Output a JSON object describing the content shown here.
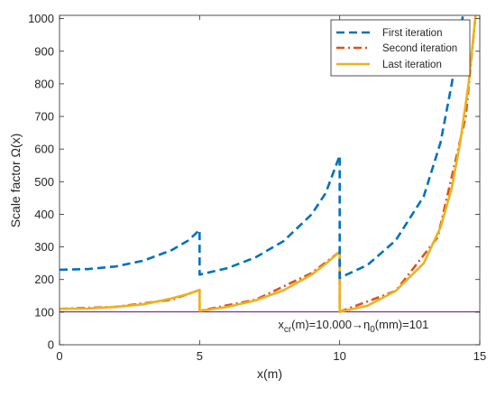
{
  "chart_data": {
    "type": "line",
    "xlabel": "x(m)",
    "ylabel": "Scale factor Ω(x)",
    "xlim": [
      0,
      15
    ],
    "ylim": [
      0,
      1010
    ],
    "xticks": [
      0,
      5,
      10,
      15
    ],
    "yticks": [
      0,
      100,
      200,
      300,
      400,
      500,
      600,
      700,
      800,
      900,
      1000
    ],
    "grid": false,
    "legend_position": "top-right",
    "annotation": {
      "text": "x_cr(m)=10.000→η_0(mm)=101",
      "parts": {
        "a": "x",
        "a_sub": "cr",
        "b": "(m)=10.000→",
        "c": "η",
        "c_sub": "0",
        "d": "(mm)=101"
      },
      "x": 7.8,
      "y": 50
    },
    "reference_line": {
      "y": 101,
      "color": "#7e2f8e"
    },
    "series": [
      {
        "name": "First iteration",
        "color": "#0072bd",
        "style": "dashed",
        "points": [
          [
            0,
            230
          ],
          [
            1,
            232
          ],
          [
            2,
            240
          ],
          [
            3,
            258
          ],
          [
            4,
            290
          ],
          [
            4.6,
            320
          ],
          [
            5,
            352
          ],
          [
            5.0,
            215
          ],
          [
            6,
            235
          ],
          [
            7,
            268
          ],
          [
            8,
            318
          ],
          [
            9,
            400
          ],
          [
            9.5,
            465
          ],
          [
            10,
            580
          ],
          [
            10.0,
            205
          ],
          [
            11,
            245
          ],
          [
            12,
            320
          ],
          [
            13,
            455
          ],
          [
            13.6,
            620
          ],
          [
            14,
            800
          ],
          [
            14.4,
            1010
          ]
        ]
      },
      {
        "name": "Second iteration",
        "color": "#d95319",
        "style": "dashdot",
        "points": [
          [
            0,
            110
          ],
          [
            2,
            116
          ],
          [
            4,
            138
          ],
          [
            5,
            168
          ],
          [
            5.0,
            104
          ],
          [
            7,
            138
          ],
          [
            9,
            220
          ],
          [
            10,
            285
          ],
          [
            10.0,
            101
          ],
          [
            12,
            165
          ],
          [
            13.5,
            330
          ],
          [
            14.5,
            700
          ],
          [
            14.85,
            1010
          ]
        ]
      },
      {
        "name": "Last iteration",
        "color": "#edb120",
        "style": "solid",
        "points": [
          [
            0,
            110
          ],
          [
            1,
            111
          ],
          [
            2,
            116
          ],
          [
            3,
            124
          ],
          [
            4,
            142
          ],
          [
            4.6,
            156
          ],
          [
            5,
            168
          ],
          [
            5.0,
            104
          ],
          [
            6,
            116
          ],
          [
            7,
            136
          ],
          [
            8,
            167
          ],
          [
            9,
            215
          ],
          [
            9.5,
            248
          ],
          [
            10,
            285
          ],
          [
            10.0,
            101
          ],
          [
            11,
            120
          ],
          [
            12,
            165
          ],
          [
            13,
            250
          ],
          [
            13.6,
            360
          ],
          [
            14,
            480
          ],
          [
            14.3,
            620
          ],
          [
            14.6,
            800
          ],
          [
            14.85,
            1010
          ]
        ]
      }
    ]
  }
}
